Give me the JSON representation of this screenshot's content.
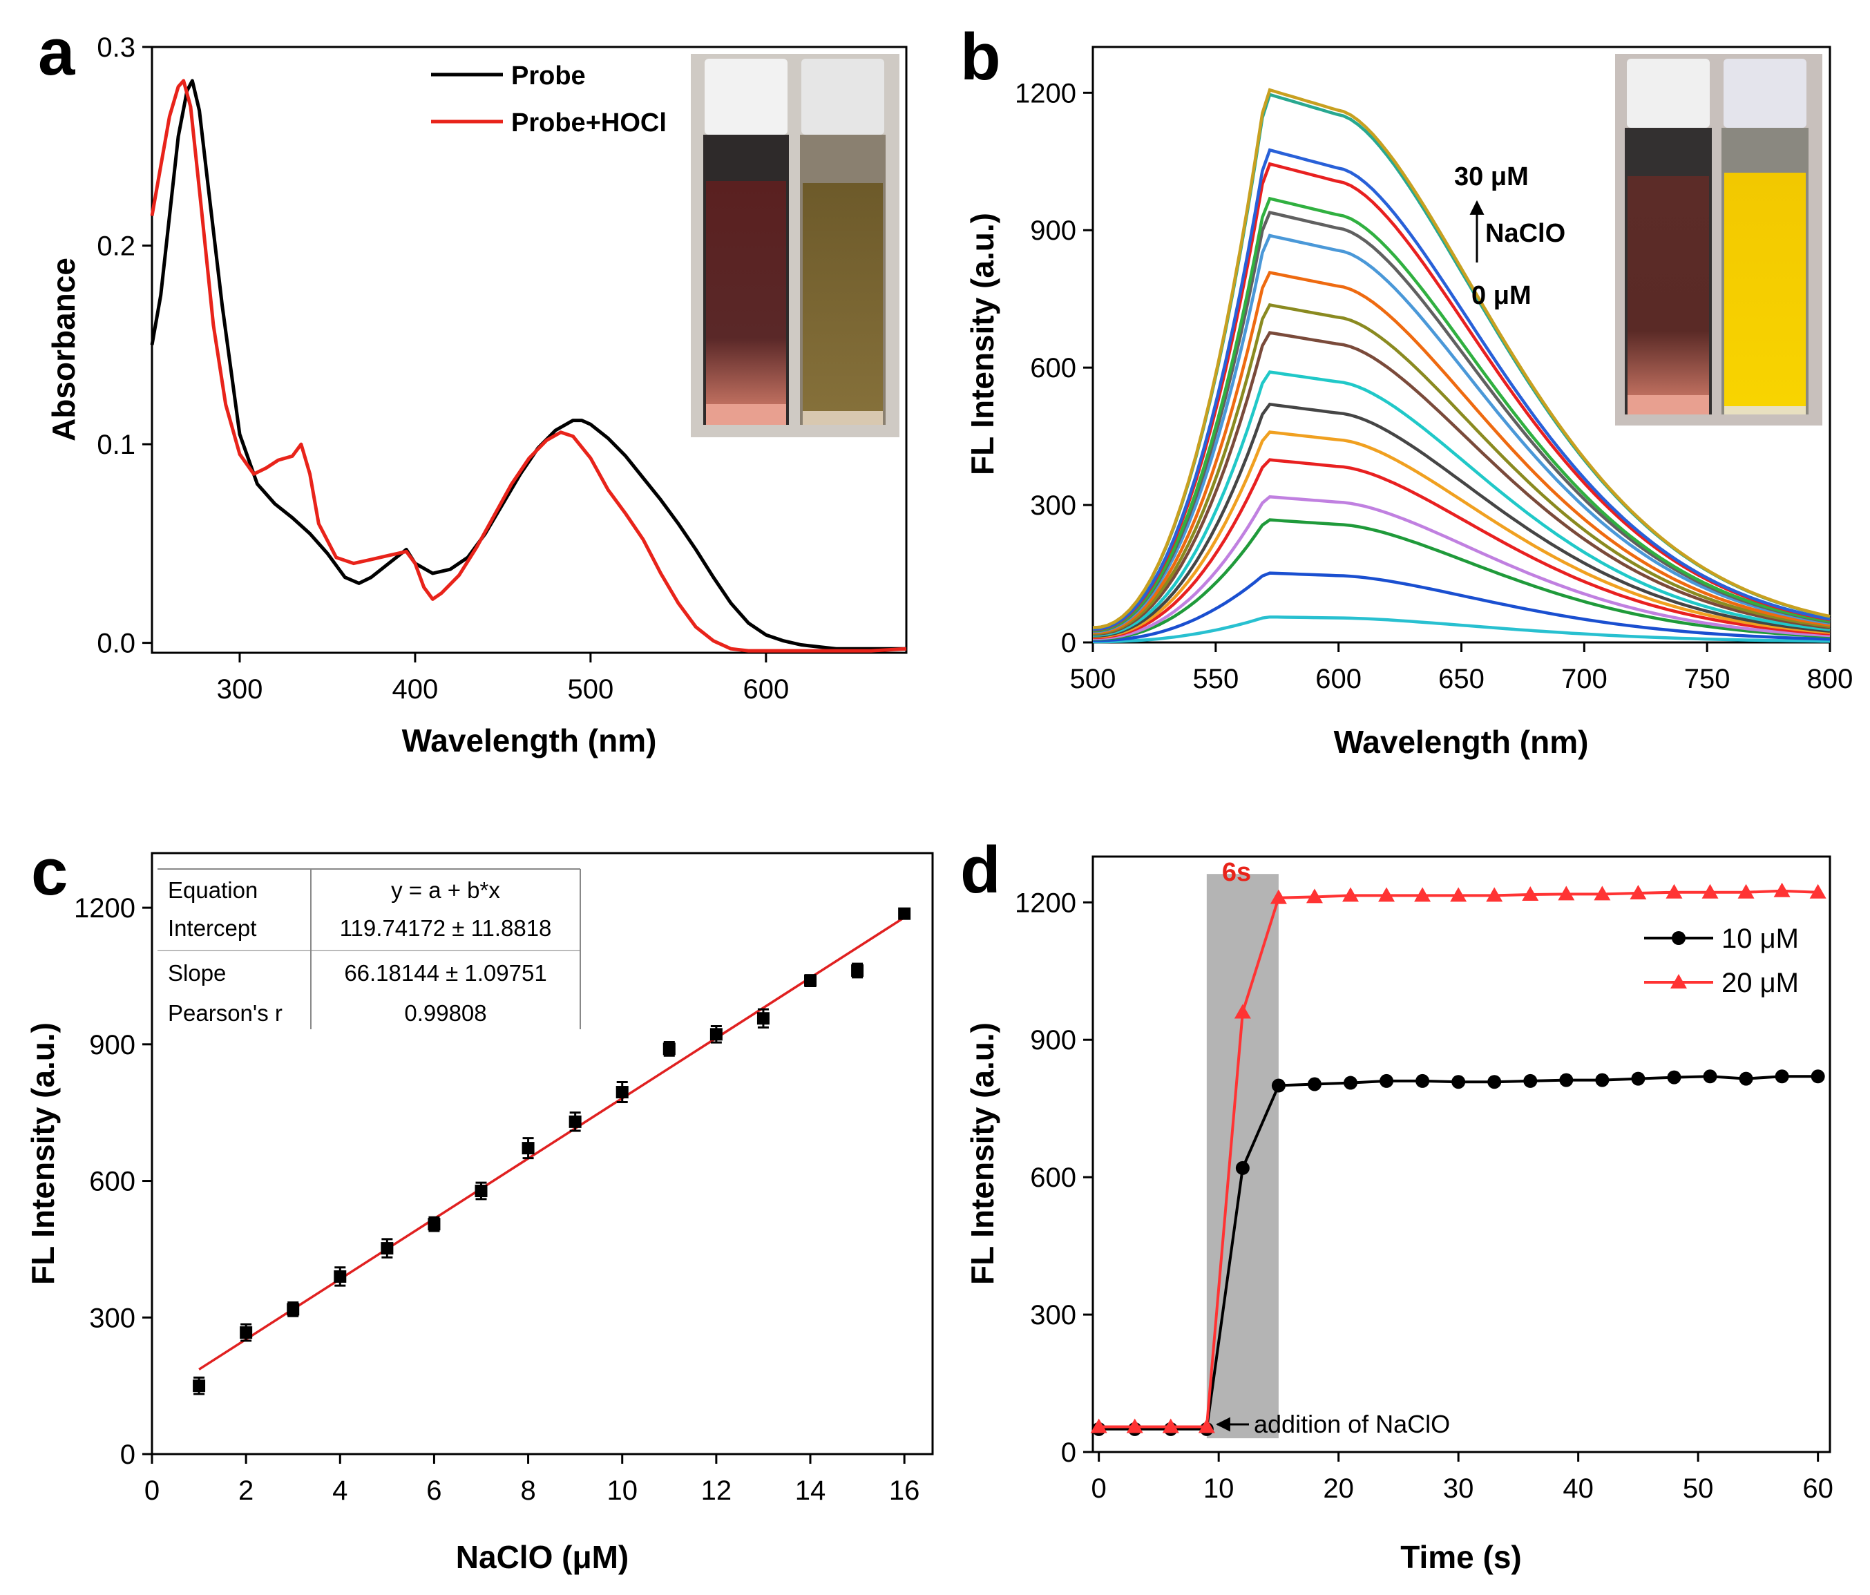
{
  "figure": {
    "colors": {
      "black": "#000000",
      "red": "#e8231a",
      "fit_red": "#e02020",
      "shade": "#b4b4b4"
    }
  },
  "chart_data": [
    {
      "panel": "a",
      "type": "line",
      "xlabel": "Wavelength (nm)",
      "ylabel": "Absorbance",
      "xlim": [
        250,
        680
      ],
      "ylim": [
        -0.005,
        0.3
      ],
      "xticks": [
        300,
        400,
        500,
        600
      ],
      "yticks": [
        0.0,
        0.1,
        0.2,
        0.3
      ],
      "ytick_labels": [
        "0.0",
        "0.1",
        "0.2",
        "0.3"
      ],
      "legend": {
        "position": "top-center"
      },
      "inset_photo": "two cuvettes: dark red-brown (Probe) and olive-brown (Probe+HOCl)",
      "series": [
        {
          "name": "Probe",
          "color": "#000000",
          "x": [
            250,
            255,
            260,
            265,
            270,
            273,
            277,
            282,
            290,
            300,
            310,
            320,
            330,
            340,
            350,
            360,
            368,
            375,
            385,
            395,
            400,
            410,
            420,
            430,
            440,
            450,
            460,
            470,
            480,
            490,
            495,
            500,
            510,
            520,
            530,
            540,
            550,
            560,
            570,
            580,
            590,
            600,
            610,
            620,
            630,
            640,
            650,
            660,
            670,
            680
          ],
          "y": [
            0.15,
            0.175,
            0.215,
            0.255,
            0.278,
            0.283,
            0.268,
            0.23,
            0.17,
            0.105,
            0.08,
            0.07,
            0.063,
            0.055,
            0.045,
            0.033,
            0.03,
            0.033,
            0.04,
            0.047,
            0.04,
            0.035,
            0.037,
            0.043,
            0.055,
            0.07,
            0.085,
            0.098,
            0.107,
            0.112,
            0.112,
            0.11,
            0.103,
            0.094,
            0.083,
            0.072,
            0.06,
            0.047,
            0.033,
            0.02,
            0.01,
            0.004,
            0.001,
            -0.001,
            -0.002,
            -0.003,
            -0.003,
            -0.003,
            -0.003,
            -0.003
          ]
        },
        {
          "name": "Probe+HOCl",
          "color": "#e8231a",
          "x": [
            250,
            255,
            260,
            265,
            268,
            272,
            278,
            285,
            292,
            300,
            308,
            315,
            322,
            330,
            335,
            340,
            345,
            355,
            365,
            375,
            385,
            395,
            400,
            405,
            410,
            415,
            425,
            435,
            445,
            455,
            465,
            475,
            483,
            490,
            500,
            510,
            520,
            530,
            540,
            550,
            560,
            570,
            580,
            590,
            600,
            610,
            620,
            640,
            660,
            680
          ],
          "y": [
            0.215,
            0.24,
            0.265,
            0.28,
            0.283,
            0.27,
            0.22,
            0.16,
            0.12,
            0.095,
            0.085,
            0.088,
            0.092,
            0.094,
            0.1,
            0.085,
            0.06,
            0.043,
            0.04,
            0.042,
            0.044,
            0.046,
            0.04,
            0.028,
            0.022,
            0.025,
            0.034,
            0.048,
            0.064,
            0.08,
            0.093,
            0.102,
            0.106,
            0.104,
            0.093,
            0.077,
            0.065,
            0.052,
            0.035,
            0.02,
            0.008,
            0.001,
            -0.003,
            -0.004,
            -0.004,
            -0.004,
            -0.004,
            -0.004,
            -0.004,
            -0.003
          ]
        }
      ]
    },
    {
      "panel": "b",
      "type": "line",
      "xlabel": "Wavelength (nm)",
      "ylabel": "FL Intensity (a.u.)",
      "xlim": [
        500,
        800
      ],
      "ylim": [
        0,
        1300
      ],
      "xticks": [
        500,
        550,
        600,
        650,
        700,
        750,
        800
      ],
      "yticks": [
        0,
        300,
        600,
        900,
        1200
      ],
      "annotation": {
        "top": "30 μM",
        "middle": "NaClO",
        "bottom": "0 μM"
      },
      "inset_photo": "two cuvettes: red-brown (Probe) and bright yellow (Probe+NaClO)",
      "series_peak_values": [
        55,
        150,
        265,
        315,
        395,
        455,
        515,
        585,
        670,
        730,
        800,
        880,
        930,
        960,
        1035,
        1065,
        1185,
        1195
      ],
      "series_colors": [
        "#28c0d0",
        "#1a4fd0",
        "#1f9a3a",
        "#c080e0",
        "#e82020",
        "#f0a020",
        "#454545",
        "#20c8c8",
        "#7a4a3a",
        "#8a8a20",
        "#ee6a10",
        "#4a98d8",
        "#606060",
        "#30b040",
        "#e82020",
        "#2860d8",
        "#28a890",
        "#c8a020"
      ]
    },
    {
      "panel": "c",
      "type": "scatter",
      "xlabel": "NaClO (μM)",
      "ylabel": "FL Intensity (a.u.)",
      "xlim": [
        0,
        16.6
      ],
      "ylim": [
        0,
        1320
      ],
      "xticks": [
        0,
        2,
        4,
        6,
        8,
        10,
        12,
        14,
        16
      ],
      "yticks": [
        0,
        300,
        600,
        900,
        1200
      ],
      "x": [
        1,
        2,
        3,
        4,
        5,
        6,
        7,
        8,
        9,
        10,
        11,
        12,
        13,
        14,
        15,
        16
      ],
      "y": [
        150,
        267,
        318,
        390,
        452,
        505,
        578,
        672,
        730,
        795,
        890,
        922,
        957,
        1040,
        1062,
        1187
      ],
      "error": [
        18,
        18,
        15,
        20,
        20,
        15,
        18,
        22,
        20,
        22,
        15,
        18,
        20,
        12,
        15,
        10
      ],
      "fit": {
        "intercept": 119.74172,
        "slope": 66.18144,
        "x_range": [
          1,
          16
        ]
      },
      "table": {
        "rows": [
          {
            "label": "Equation",
            "value": "y = a + b*x"
          },
          {
            "label": "Intercept",
            "value": "119.74172 ± 11.8818"
          },
          {
            "label": "Slope",
            "value": "66.18144 ± 1.09751"
          },
          {
            "label": "Pearson's r",
            "value": "0.99808"
          }
        ]
      }
    },
    {
      "panel": "d",
      "type": "line",
      "xlabel": "Time (s)",
      "ylabel": "FL Intensity (a.u.)",
      "xlim": [
        -0.5,
        61
      ],
      "ylim": [
        0,
        1300
      ],
      "xticks": [
        0,
        10,
        20,
        30,
        40,
        50,
        60
      ],
      "yticks": [
        0,
        300,
        600,
        900,
        1200
      ],
      "shaded_region": {
        "x": [
          9,
          15
        ],
        "label": "6s"
      },
      "arrow_annotation": "addition of NaClO",
      "legend": {
        "position": "right"
      },
      "series": [
        {
          "name": "10 μM",
          "color": "#000000",
          "marker": "circle",
          "x": [
            0,
            3,
            6,
            9,
            12,
            15,
            18,
            21,
            24,
            27,
            30,
            33,
            36,
            39,
            42,
            45,
            48,
            51,
            54,
            57,
            60
          ],
          "y": [
            50,
            50,
            50,
            50,
            620,
            800,
            803,
            806,
            810,
            810,
            808,
            808,
            810,
            812,
            812,
            815,
            818,
            820,
            815,
            820,
            820
          ]
        },
        {
          "name": "20 μM",
          "color": "#ff3333",
          "marker": "triangle",
          "x": [
            0,
            3,
            6,
            9,
            12,
            15,
            18,
            21,
            24,
            27,
            30,
            33,
            36,
            39,
            42,
            45,
            48,
            51,
            54,
            57,
            60
          ],
          "y": [
            55,
            55,
            55,
            55,
            960,
            1210,
            1212,
            1215,
            1215,
            1215,
            1215,
            1215,
            1217,
            1218,
            1218,
            1220,
            1222,
            1222,
            1222,
            1225,
            1222
          ]
        }
      ]
    }
  ]
}
